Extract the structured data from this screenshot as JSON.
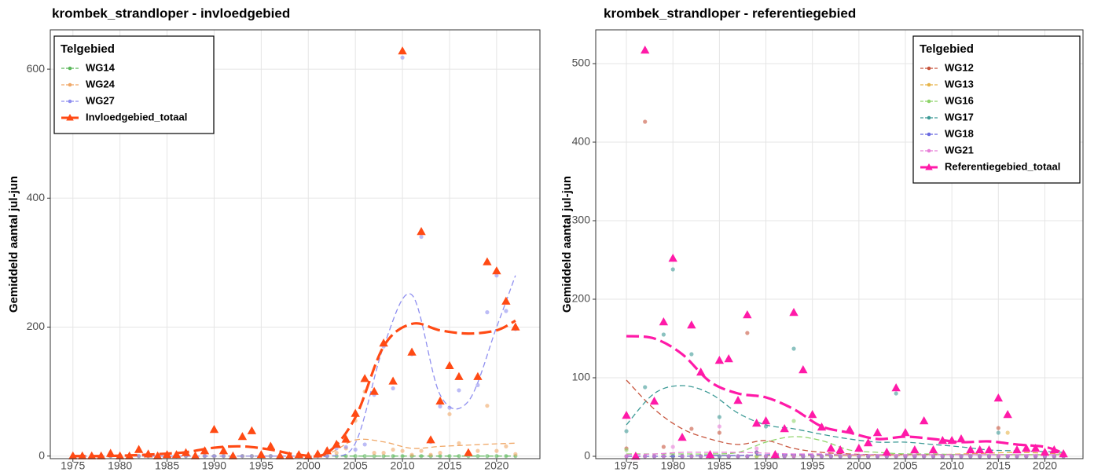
{
  "chart_data": [
    {
      "type": "scatter",
      "title": "krombek_strandloper - invloedgebied",
      "ylabel": "Gemiddeld aantal jul-jun",
      "legend_title": "Telgebied",
      "legend": "top-left",
      "grid": true,
      "x": [
        1975,
        1976,
        1977,
        1978,
        1979,
        1980,
        1981,
        1982,
        1983,
        1984,
        1985,
        1986,
        1987,
        1988,
        1989,
        1990,
        1991,
        1992,
        1993,
        1994,
        1995,
        1996,
        1997,
        1998,
        1999,
        2000,
        2001,
        2002,
        2003,
        2004,
        2005,
        2006,
        2007,
        2008,
        2009,
        2010,
        2011,
        2012,
        2013,
        2014,
        2015,
        2016,
        2017,
        2018,
        2019,
        2020,
        2021,
        2022
      ],
      "trend_x": [
        1975,
        1978,
        1981,
        1984,
        1987,
        1990,
        1993,
        1996,
        1999,
        2002,
        2005,
        2008,
        2011,
        2014,
        2017,
        2020,
        2022
      ],
      "xlim": [
        1972.6,
        2024.6
      ],
      "xticks": [
        1975,
        1980,
        1985,
        1990,
        1995,
        2000,
        2005,
        2010,
        2015,
        2020
      ],
      "ylim": [
        -4,
        661
      ],
      "yticks": [
        0,
        200,
        400,
        600
      ],
      "series": [
        {
          "name": "WG14",
          "color": "#5cb85c",
          "marker": "circle",
          "values": [
            0,
            0,
            0,
            0,
            0,
            0,
            0,
            0,
            0,
            0,
            0,
            0,
            0,
            0,
            0,
            0,
            0,
            0,
            0,
            0,
            0,
            0,
            0,
            0,
            0,
            0,
            0,
            0,
            0,
            0,
            0,
            0,
            0,
            0,
            0,
            0,
            0,
            0,
            0,
            0,
            0,
            0,
            0,
            0,
            0,
            0,
            0,
            0
          ],
          "trend": [
            0,
            0,
            0,
            0,
            0,
            0,
            0,
            0,
            0,
            0,
            0,
            0,
            0,
            0,
            0,
            0,
            0
          ]
        },
        {
          "name": "WG24",
          "color": "#f0a868",
          "marker": "circle",
          "values": [
            0,
            0,
            0,
            0,
            0,
            0,
            0,
            0,
            0,
            0,
            0,
            0,
            0,
            0,
            0,
            0,
            0,
            0,
            0,
            0,
            0,
            0,
            0,
            0,
            0,
            0,
            0,
            0,
            5,
            12,
            55,
            100,
            5,
            5,
            10,
            8,
            2,
            8,
            2,
            5,
            65,
            20,
            3,
            8,
            78,
            8,
            15,
            3
          ],
          "trend": [
            0,
            0,
            0,
            0,
            0,
            0,
            0,
            0,
            0,
            3,
            25,
            22,
            12,
            15,
            17,
            19,
            20
          ]
        },
        {
          "name": "WG27",
          "color": "#8f8ff0",
          "marker": "circle",
          "values": [
            0,
            0,
            0,
            0,
            0,
            0,
            0,
            0,
            0,
            0,
            0,
            0,
            0,
            0,
            0,
            0,
            0,
            0,
            0,
            0,
            0,
            0,
            0,
            0,
            0,
            0,
            0,
            0,
            12,
            14,
            10,
            18,
            95,
            170,
            105,
            618,
            158,
            340,
            22,
            77,
            75,
            102,
            2,
            110,
            223,
            280,
            225,
            197
          ],
          "trend": [
            0,
            0,
            0,
            0,
            0,
            0,
            0,
            0,
            0,
            0,
            20,
            170,
            250,
            95,
            85,
            200,
            280
          ]
        },
        {
          "name": "Invloedgebied_totaal",
          "color": "#ff4a14",
          "marker": "triangle",
          "values": [
            0,
            0,
            0,
            0,
            4,
            0,
            0,
            10,
            3,
            0,
            2,
            2,
            5,
            0,
            8,
            41,
            8,
            0,
            30,
            39,
            2,
            15,
            0,
            0,
            2,
            0,
            3,
            8,
            18,
            26,
            66,
            120,
            100,
            175,
            116,
            628,
            161,
            348,
            25,
            85,
            140,
            123,
            5,
            123,
            301,
            287,
            240,
            200
          ],
          "trend": [
            0,
            0,
            1,
            3,
            6,
            13,
            15,
            10,
            2,
            5,
            60,
            170,
            205,
            195,
            190,
            195,
            210
          ]
        }
      ]
    },
    {
      "type": "scatter",
      "title": "krombek_strandloper - referentiegebied",
      "ylabel": "Gemiddeld aantal jul-jun",
      "legend_title": "Telgebied",
      "legend": "top-right",
      "grid": true,
      "x": [
        1975,
        1976,
        1977,
        1978,
        1979,
        1980,
        1981,
        1982,
        1983,
        1984,
        1985,
        1986,
        1987,
        1988,
        1989,
        1990,
        1991,
        1992,
        1993,
        1994,
        1995,
        1996,
        1997,
        1998,
        1999,
        2000,
        2001,
        2002,
        2003,
        2004,
        2005,
        2006,
        2007,
        2008,
        2009,
        2010,
        2011,
        2012,
        2013,
        2014,
        2015,
        2016,
        2017,
        2018,
        2019,
        2020,
        2021,
        2022
      ],
      "trend_x": [
        1975,
        1978,
        1981,
        1984,
        1987,
        1990,
        1993,
        1996,
        1999,
        2002,
        2005,
        2008,
        2011,
        2014,
        2017,
        2020,
        2022
      ],
      "xlim": [
        1971.7,
        2024.1
      ],
      "xticks": [
        1975,
        1980,
        1985,
        1990,
        1995,
        2000,
        2005,
        2010,
        2015,
        2020
      ],
      "ylim": [
        -3,
        543
      ],
      "yticks": [
        0,
        100,
        200,
        300,
        400,
        500
      ],
      "series": [
        {
          "name": "WG12",
          "color": "#c8553d",
          "marker": "circle",
          "values": [
            10,
            0,
            426,
            0,
            12,
            0,
            0,
            35,
            0,
            0,
            30,
            0,
            0,
            157,
            5,
            0,
            0,
            0,
            0,
            0,
            0,
            0,
            0,
            0,
            0,
            0,
            0,
            0,
            0,
            0,
            0,
            0,
            0,
            0,
            0,
            0,
            0,
            0,
            0,
            0,
            36,
            0,
            0,
            0,
            0,
            0,
            0,
            0
          ],
          "trend": [
            97,
            60,
            35,
            22,
            15,
            20,
            10,
            5,
            3,
            2,
            2,
            2,
            2,
            2,
            2,
            2,
            2
          ]
        },
        {
          "name": "WG13",
          "color": "#e6b44a",
          "marker": "circle",
          "values": [
            0,
            0,
            0,
            0,
            0,
            0,
            0,
            0,
            0,
            0,
            0,
            0,
            0,
            0,
            0,
            0,
            0,
            0,
            0,
            0,
            0,
            0,
            0,
            0,
            0,
            0,
            0,
            0,
            0,
            0,
            0,
            0,
            0,
            0,
            0,
            0,
            0,
            0,
            0,
            0,
            0,
            30,
            0,
            0,
            0,
            0,
            0,
            0
          ],
          "trend": [
            0,
            0,
            0,
            1,
            1,
            1,
            1,
            1,
            1,
            1,
            1,
            2,
            3,
            4,
            5,
            4,
            3
          ]
        },
        {
          "name": "WG16",
          "color": "#8fd46a",
          "marker": "circle",
          "values": [
            8,
            0,
            0,
            0,
            0,
            0,
            0,
            0,
            0,
            0,
            0,
            0,
            0,
            0,
            0,
            0,
            0,
            0,
            45,
            0,
            0,
            0,
            0,
            0,
            0,
            0,
            0,
            0,
            0,
            0,
            0,
            0,
            0,
            0,
            0,
            0,
            0,
            0,
            0,
            0,
            0,
            0,
            0,
            0,
            0,
            0,
            0,
            0
          ],
          "trend": [
            3,
            3,
            3,
            3,
            5,
            18,
            25,
            20,
            8,
            5,
            3,
            3,
            2,
            2,
            2,
            2,
            2
          ]
        },
        {
          "name": "WG17",
          "color": "#3d9a96",
          "marker": "circle",
          "values": [
            32,
            0,
            88,
            0,
            155,
            238,
            0,
            130,
            0,
            0,
            50,
            0,
            0,
            0,
            42,
            38,
            0,
            0,
            137,
            0,
            0,
            0,
            0,
            0,
            0,
            0,
            0,
            0,
            0,
            80,
            0,
            0,
            0,
            0,
            0,
            0,
            0,
            0,
            0,
            0,
            30,
            0,
            0,
            0,
            0,
            0,
            0,
            0
          ],
          "trend": [
            40,
            80,
            90,
            80,
            55,
            40,
            35,
            28,
            22,
            18,
            18,
            15,
            12,
            8,
            7,
            6,
            5
          ]
        },
        {
          "name": "WG18",
          "color": "#6a6ae0",
          "marker": "circle",
          "values": [
            0,
            0,
            0,
            0,
            0,
            0,
            0,
            0,
            0,
            0,
            0,
            0,
            0,
            0,
            5,
            0,
            0,
            0,
            0,
            0,
            0,
            0,
            0,
            0,
            0,
            0,
            0,
            0,
            0,
            0,
            0,
            0,
            0,
            0,
            0,
            0,
            0,
            0,
            0,
            0,
            0,
            0,
            0,
            0,
            0,
            0,
            0,
            0
          ],
          "trend": [
            0,
            0,
            0,
            1,
            1,
            2,
            2,
            2,
            2,
            2,
            2,
            2,
            2,
            2,
            2,
            2,
            2
          ]
        },
        {
          "name": "WG21",
          "color": "#e87fd8",
          "marker": "circle",
          "values": [
            0,
            0,
            0,
            0,
            0,
            12,
            0,
            0,
            0,
            0,
            38,
            0,
            0,
            0,
            10,
            0,
            0,
            0,
            0,
            0,
            0,
            0,
            0,
            0,
            0,
            0,
            0,
            0,
            0,
            0,
            0,
            0,
            0,
            0,
            0,
            0,
            0,
            0,
            0,
            0,
            0,
            0,
            0,
            0,
            0,
            0,
            0,
            0
          ],
          "trend": [
            2,
            3,
            5,
            5,
            5,
            4,
            3,
            3,
            2,
            2,
            2,
            2,
            2,
            2,
            2,
            2,
            2
          ]
        },
        {
          "name": "Referentiegebied_totaal",
          "color": "#ff1aa8",
          "marker": "triangle",
          "values": [
            52,
            0,
            517,
            70,
            171,
            252,
            24,
            167,
            107,
            2,
            122,
            124,
            71,
            180,
            42,
            45,
            2,
            35,
            183,
            110,
            53,
            37,
            10,
            8,
            34,
            10,
            17,
            30,
            5,
            87,
            30,
            8,
            45,
            8,
            20,
            20,
            22,
            8,
            8,
            8,
            74,
            53,
            8,
            10,
            10,
            5,
            8,
            3
          ],
          "trend": [
            153,
            150,
            130,
            95,
            80,
            75,
            60,
            38,
            30,
            22,
            25,
            22,
            18,
            19,
            15,
            12,
            4
          ]
        }
      ]
    }
  ]
}
